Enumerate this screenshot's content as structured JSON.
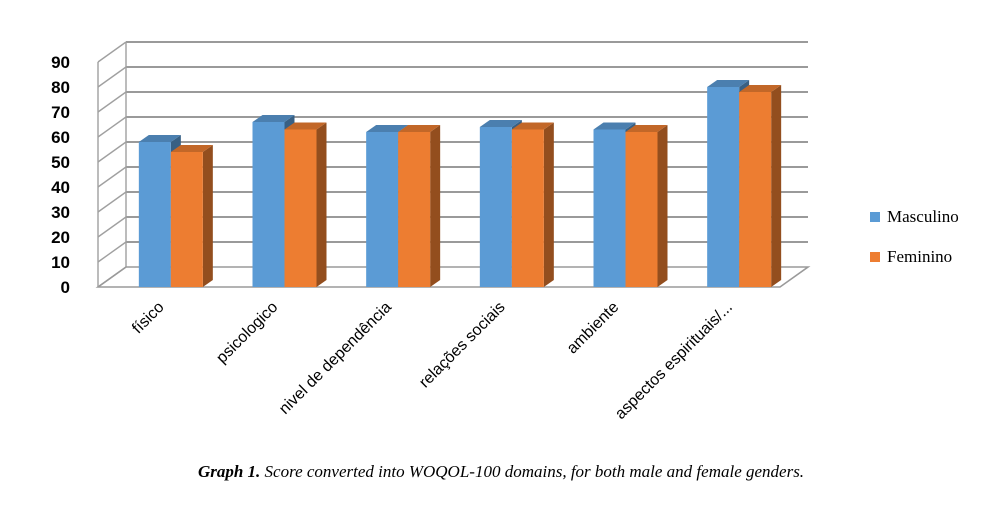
{
  "chart_data": {
    "type": "bar",
    "title": "",
    "xlabel": "",
    "ylabel": "",
    "ylim": [
      0,
      90
    ],
    "yticks": [
      0,
      10,
      20,
      30,
      40,
      50,
      60,
      70,
      80,
      90
    ],
    "grid": true,
    "legend_position": "right",
    "categories": [
      "físico",
      "psicologico",
      "nivel de dependência",
      "relações sociais",
      "ambiente",
      "aspectos espirituais/..."
    ],
    "series": [
      {
        "name": "Masculino",
        "color": "#5B9BD5",
        "values": [
          58,
          66,
          62,
          64,
          63,
          80
        ]
      },
      {
        "name": "Feminino",
        "color": "#ED7D31",
        "values": [
          54,
          63,
          62,
          63,
          62,
          78
        ]
      }
    ]
  },
  "caption": {
    "label": "Graph 1.",
    "text": " Score converted into WOQOL-100 domains, for both male and female genders."
  }
}
